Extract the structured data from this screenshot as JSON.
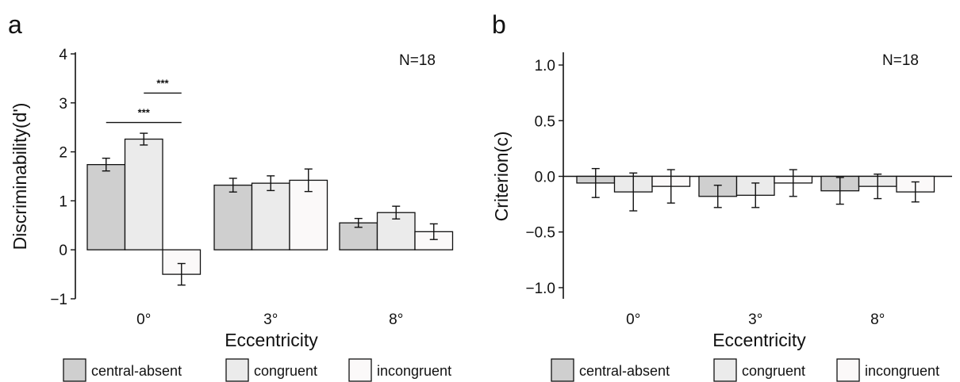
{
  "chart_data": [
    {
      "panel_label": "a",
      "type": "bar",
      "categories": [
        "0°",
        "3°",
        "8°"
      ],
      "xlabel": "Eccentricity",
      "ylabel": "Discriminability(d')",
      "ylim": [
        -1,
        4
      ],
      "yticks": [
        {
          "value": -1,
          "label": "−1"
        },
        {
          "value": 0,
          "label": "0"
        },
        {
          "value": 1,
          "label": "1"
        },
        {
          "value": 2,
          "label": "2"
        },
        {
          "value": 3,
          "label": "3"
        },
        {
          "value": 4,
          "label": "4"
        }
      ],
      "annotation": "N=18",
      "grid": false,
      "legend": "bottom",
      "zero_line": false,
      "series": [
        {
          "name": "central-absent",
          "color": "#cfcfcf",
          "values": [
            1.74,
            1.32,
            0.55
          ],
          "errors": [
            0.13,
            0.14,
            0.09
          ]
        },
        {
          "name": "congruent",
          "color": "#ebebeb",
          "values": [
            2.26,
            1.36,
            0.76
          ],
          "errors": [
            0.12,
            0.15,
            0.13
          ]
        },
        {
          "name": "incongruent",
          "color": "#fbf9f9",
          "values": [
            -0.5,
            1.42,
            0.37
          ],
          "errors": [
            0.22,
            0.23,
            0.16
          ]
        }
      ],
      "significance": [
        {
          "label": "***",
          "from": [
            0,
            "central-absent"
          ],
          "to": [
            0,
            "incongruent"
          ],
          "y": 2.6
        },
        {
          "label": "***",
          "from": [
            0,
            "congruent"
          ],
          "to": [
            0,
            "incongruent"
          ],
          "y": 3.2
        }
      ]
    },
    {
      "panel_label": "b",
      "type": "bar",
      "categories": [
        "0°",
        "3°",
        "8°"
      ],
      "xlabel": "Eccentricity",
      "ylabel": "Criterion(c)",
      "ylim": [
        -1.1,
        1.1
      ],
      "yticks": [
        {
          "value": -1.0,
          "label": "−1.0"
        },
        {
          "value": -0.5,
          "label": "−0.5"
        },
        {
          "value": 0.0,
          "label": "0.0"
        },
        {
          "value": 0.5,
          "label": "0.5"
        },
        {
          "value": 1.0,
          "label": "1.0"
        }
      ],
      "annotation": "N=18",
      "grid": false,
      "legend": "bottom",
      "zero_line": true,
      "series": [
        {
          "name": "central-absent",
          "color": "#cfcfcf",
          "values": [
            -0.06,
            -0.18,
            -0.13
          ],
          "errors": [
            0.13,
            0.1,
            0.12
          ]
        },
        {
          "name": "congruent",
          "color": "#ebebeb",
          "values": [
            -0.14,
            -0.17,
            -0.09
          ],
          "errors": [
            0.17,
            0.11,
            0.11
          ]
        },
        {
          "name": "incongruent",
          "color": "#fbf9f9",
          "values": [
            -0.09,
            -0.06,
            -0.14
          ],
          "errors": [
            0.15,
            0.12,
            0.09
          ]
        }
      ],
      "significance": []
    }
  ]
}
